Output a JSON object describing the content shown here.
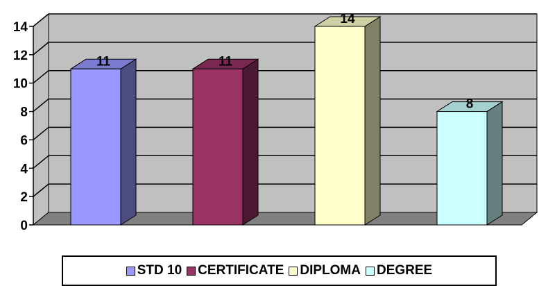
{
  "chart_data": {
    "type": "bar",
    "title": "",
    "xlabel": "",
    "ylabel": "",
    "ylim": [
      0,
      14
    ],
    "yticks": [
      0,
      2,
      4,
      6,
      8,
      10,
      12,
      14
    ],
    "grid": true,
    "legend_position": "bottom",
    "categories": [
      "STD 10",
      "CERTIFICATE",
      "DIPLOMA",
      "DEGREE"
    ],
    "values": [
      11,
      11,
      14,
      8
    ],
    "data_labels": [
      "11",
      "11",
      "14",
      "8"
    ],
    "colors": {
      "plot_wall": "#c0c0c0",
      "floor": "#808080",
      "bars": [
        {
          "front": "#9999ff",
          "top": "#7b7bd0",
          "side": "#4c4c80"
        },
        {
          "front": "#993366",
          "top": "#7a2852",
          "side": "#4c1933"
        },
        {
          "front": "#ffffcc",
          "top": "#d0d0a5",
          "side": "#808066"
        },
        {
          "front": "#ccffff",
          "top": "#a5d0d0",
          "side": "#668080"
        }
      ]
    }
  }
}
